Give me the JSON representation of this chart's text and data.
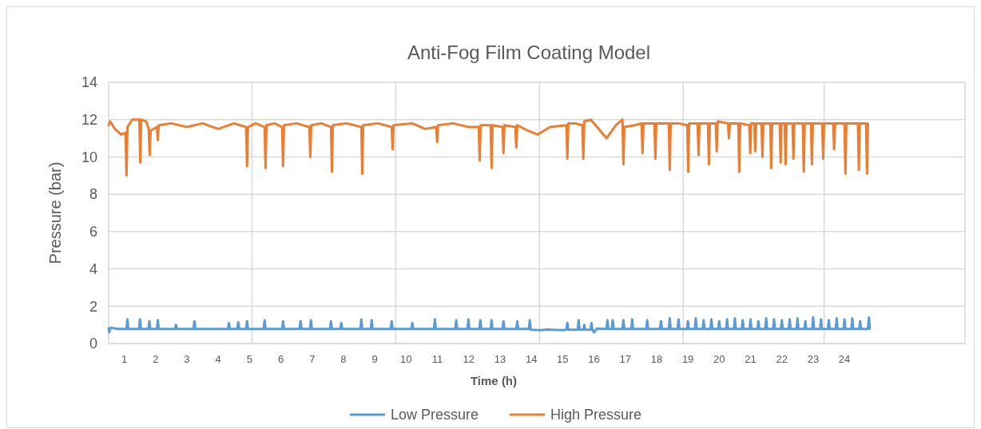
{
  "chart_data": {
    "type": "line",
    "title": "Anti-Fog Film Coating Model",
    "xlabel": "Time (h)",
    "ylabel": "Pressure (bar)",
    "xlim": [
      0.5,
      27.85
    ],
    "xticks": [
      {
        "value": 0.5,
        "label": null
      },
      1,
      2,
      3,
      4,
      5,
      {
        "value": 5.08,
        "label": null
      },
      6,
      7,
      8,
      9,
      {
        "value": 9.67,
        "label": null
      },
      10,
      11,
      12,
      13,
      14,
      {
        "value": 14.26,
        "label": null
      },
      15,
      16,
      17,
      18,
      {
        "value": 18.85,
        "label": null
      },
      19,
      20,
      21,
      22,
      23,
      {
        "value": 23.35,
        "label": null
      },
      24,
      {
        "value": 27.85,
        "label": null
      }
    ],
    "ylim": [
      0,
      14
    ],
    "yticks": [
      0,
      2,
      4,
      6,
      8,
      10,
      12,
      14
    ],
    "grid": true,
    "legend": "bottom",
    "marker": "none",
    "line_style": "solid",
    "series": [
      {
        "name": "Low Pressure",
        "color": "#5b9bd5",
        "x": [
          0.5,
          0.52,
          0.56,
          0.8,
          1.07,
          1.1,
          1.13,
          1.47,
          1.5,
          1.53,
          1.77,
          1.8,
          1.83,
          2.04,
          2.07,
          2.1,
          2.62,
          2.65,
          2.68,
          3.21,
          3.24,
          3.27,
          4.31,
          4.34,
          4.37,
          4.61,
          4.64,
          4.67,
          4.89,
          4.92,
          4.95,
          5.45,
          5.48,
          5.51,
          6.04,
          6.07,
          6.1,
          6.6,
          6.63,
          6.66,
          6.93,
          6.96,
          6.99,
          7.57,
          7.6,
          7.63,
          7.9,
          7.93,
          7.96,
          8.54,
          8.57,
          8.6,
          8.87,
          8.9,
          8.93,
          9.51,
          9.54,
          9.57,
          10.17,
          10.2,
          10.23,
          10.89,
          10.92,
          10.95,
          11.57,
          11.6,
          11.63,
          11.96,
          11.99,
          12.02,
          12.34,
          12.37,
          12.4,
          12.7,
          12.73,
          12.76,
          13.08,
          13.11,
          13.14,
          13.52,
          13.55,
          13.58,
          13.92,
          13.95,
          13.98,
          14.3,
          14.5,
          15.0,
          15.12,
          15.15,
          15.18,
          15.48,
          15.51,
          15.54,
          15.66,
          15.69,
          15.72,
          15.89,
          15.92,
          15.95,
          16.0,
          16.1,
          16.4,
          16.43,
          16.46,
          16.57,
          16.6,
          16.63,
          16.91,
          16.94,
          16.97,
          17.19,
          17.22,
          17.25,
          17.67,
          17.7,
          17.73,
          18.11,
          18.14,
          18.17,
          18.39,
          18.42,
          18.45,
          18.67,
          18.7,
          18.73,
          18.97,
          19.0,
          19.03,
          19.22,
          19.25,
          19.28,
          19.47,
          19.5,
          19.53,
          19.72,
          19.75,
          19.78,
          19.97,
          20.0,
          20.03,
          20.22,
          20.25,
          20.28,
          20.47,
          20.5,
          20.53,
          20.72,
          20.75,
          20.78,
          20.97,
          21.0,
          21.03,
          21.22,
          21.25,
          21.28,
          21.47,
          21.5,
          21.53,
          21.72,
          21.75,
          21.78,
          21.97,
          22.0,
          22.03,
          22.22,
          22.25,
          22.28,
          22.47,
          22.5,
          22.53,
          22.72,
          22.75,
          22.78,
          22.97,
          23.0,
          23.03,
          23.22,
          23.25,
          23.28,
          23.47,
          23.5,
          23.53,
          23.72,
          23.75,
          23.78,
          23.97,
          24.0,
          24.03,
          24.22,
          24.25,
          24.28,
          24.47,
          24.5,
          24.53,
          24.75,
          24.78,
          24.81
        ],
        "values": [
          0.8,
          0.6,
          0.85,
          0.78,
          0.78,
          1.3,
          0.78,
          0.78,
          1.3,
          0.78,
          0.78,
          1.2,
          0.78,
          0.78,
          1.25,
          0.78,
          0.78,
          1.0,
          0.78,
          0.78,
          1.2,
          0.78,
          0.78,
          1.1,
          0.78,
          0.78,
          1.15,
          0.78,
          0.78,
          1.2,
          0.78,
          0.78,
          1.25,
          0.78,
          0.78,
          1.2,
          0.78,
          0.78,
          1.2,
          0.78,
          0.78,
          1.25,
          0.78,
          0.78,
          1.2,
          0.78,
          0.78,
          1.1,
          0.78,
          0.78,
          1.3,
          0.78,
          0.78,
          1.25,
          0.78,
          0.78,
          1.2,
          0.78,
          0.78,
          1.1,
          0.78,
          0.78,
          1.3,
          0.78,
          0.78,
          1.25,
          0.78,
          0.78,
          1.3,
          0.78,
          0.78,
          1.25,
          0.78,
          0.78,
          1.25,
          0.78,
          0.78,
          1.2,
          0.78,
          0.78,
          1.2,
          0.78,
          0.78,
          1.25,
          0.74,
          0.72,
          0.75,
          0.72,
          0.74,
          1.1,
          0.74,
          0.74,
          1.25,
          0.74,
          0.74,
          1.0,
          0.74,
          0.74,
          1.1,
          0.74,
          0.6,
          0.8,
          0.78,
          1.25,
          0.78,
          0.78,
          1.25,
          0.78,
          0.78,
          1.25,
          0.78,
          0.78,
          1.3,
          0.78,
          0.78,
          1.25,
          0.78,
          0.78,
          1.2,
          0.78,
          0.78,
          1.35,
          0.78,
          0.78,
          1.3,
          0.78,
          0.78,
          1.2,
          0.78,
          0.78,
          1.35,
          0.78,
          0.78,
          1.25,
          0.78,
          0.78,
          1.3,
          0.78,
          0.78,
          1.2,
          0.78,
          0.78,
          1.3,
          0.78,
          0.78,
          1.35,
          0.78,
          0.78,
          1.25,
          0.78,
          0.78,
          1.3,
          0.78,
          0.78,
          1.2,
          0.78,
          0.78,
          1.35,
          0.78,
          0.78,
          1.3,
          0.78,
          0.78,
          1.25,
          0.78,
          0.78,
          1.3,
          0.78,
          0.78,
          1.35,
          0.78,
          0.78,
          1.2,
          0.78,
          0.78,
          1.4,
          0.78,
          0.78,
          1.3,
          0.78,
          0.78,
          1.25,
          0.78,
          0.78,
          1.35,
          0.78,
          0.78,
          1.3,
          0.78,
          0.78,
          1.35,
          0.78,
          0.78,
          1.2,
          0.78,
          0.78,
          1.4,
          0.8
        ]
      },
      {
        "name": "High Pressure",
        "color": "#ed7d31",
        "x": [
          0.5,
          0.55,
          0.7,
          0.9,
          1.04,
          1.07,
          1.1,
          1.25,
          1.48,
          1.51,
          1.54,
          1.7,
          1.78,
          1.81,
          1.84,
          2.04,
          2.07,
          2.1,
          2.5,
          3,
          3.5,
          4,
          4.5,
          4.89,
          4.92,
          4.95,
          5.2,
          5.48,
          5.51,
          5.54,
          5.8,
          6.04,
          6.07,
          6.1,
          6.5,
          6.91,
          6.94,
          6.97,
          7.3,
          7.6,
          7.63,
          7.66,
          8.1,
          8.57,
          8.6,
          8.63,
          9.1,
          9.54,
          9.57,
          9.6,
          10.2,
          10.6,
          10.96,
          10.99,
          11.02,
          11.5,
          12,
          12.32,
          12.35,
          12.38,
          12.7,
          12.73,
          12.76,
          13.08,
          13.11,
          13.14,
          13.49,
          13.52,
          13.55,
          13.9,
          14.2,
          14.6,
          15.12,
          15.15,
          15.18,
          15.4,
          15.63,
          15.66,
          15.69,
          15.9,
          16.4,
          16.7,
          16.91,
          16.94,
          16.97,
          17.3,
          17.52,
          17.55,
          17.58,
          17.93,
          17.96,
          17.99,
          18.2,
          18.39,
          18.42,
          18.45,
          18.7,
          18.98,
          19.01,
          19.04,
          19.31,
          19.34,
          19.37,
          19.64,
          19.67,
          19.7,
          19.89,
          19.92,
          19.95,
          20.28,
          20.31,
          20.34,
          20.61,
          20.64,
          20.67,
          20.96,
          20.99,
          21.02,
          21.12,
          21.15,
          21.18,
          21.35,
          21.38,
          21.41,
          21.63,
          21.66,
          21.69,
          21.93,
          21.96,
          21.99,
          22.09,
          22.12,
          22.15,
          22.34,
          22.37,
          22.4,
          22.67,
          22.7,
          22.73,
          22.93,
          22.96,
          22.99,
          23.29,
          23.32,
          23.35,
          23.64,
          23.67,
          23.7,
          24,
          24.03,
          24.06,
          24.43,
          24.46,
          24.49,
          24.69,
          24.72,
          24.75
        ],
        "values": [
          11.7,
          11.9,
          11.5,
          11.2,
          11.3,
          9.0,
          11.6,
          12.0,
          12.0,
          9.7,
          12.0,
          11.9,
          11.5,
          10.1,
          11.4,
          11.6,
          10.9,
          11.7,
          11.8,
          11.6,
          11.8,
          11.5,
          11.8,
          11.6,
          9.5,
          11.6,
          11.8,
          11.6,
          9.4,
          11.7,
          11.8,
          11.6,
          9.5,
          11.7,
          11.8,
          11.6,
          10.0,
          11.7,
          11.8,
          11.6,
          9.2,
          11.7,
          11.8,
          11.6,
          9.1,
          11.7,
          11.8,
          11.6,
          10.4,
          11.7,
          11.8,
          11.5,
          11.6,
          10.8,
          11.7,
          11.8,
          11.6,
          11.6,
          9.8,
          11.7,
          11.7,
          9.4,
          11.7,
          11.6,
          10.2,
          11.7,
          11.6,
          10.5,
          11.7,
          11.4,
          11.2,
          11.6,
          11.7,
          9.9,
          11.8,
          11.8,
          11.7,
          9.9,
          11.9,
          12.0,
          11.0,
          11.7,
          12.0,
          9.6,
          11.6,
          11.7,
          11.8,
          10.2,
          11.8,
          11.8,
          9.9,
          11.8,
          11.8,
          11.8,
          9.3,
          11.8,
          11.8,
          11.7,
          9.2,
          11.8,
          11.8,
          10.1,
          11.8,
          11.8,
          9.6,
          11.8,
          11.8,
          10.3,
          11.9,
          11.8,
          11.0,
          11.8,
          11.8,
          9.2,
          11.8,
          11.7,
          10.2,
          11.8,
          11.8,
          10.3,
          11.8,
          11.8,
          10.0,
          11.8,
          11.8,
          9.4,
          11.8,
          11.8,
          9.7,
          11.8,
          11.8,
          9.6,
          11.8,
          11.8,
          9.9,
          11.8,
          11.8,
          9.2,
          11.8,
          11.8,
          9.6,
          11.8,
          11.8,
          9.9,
          11.8,
          11.8,
          10.4,
          11.8,
          11.8,
          9.1,
          11.8,
          11.8,
          9.3,
          11.8,
          11.8,
          9.1,
          11.8
        ]
      }
    ]
  }
}
